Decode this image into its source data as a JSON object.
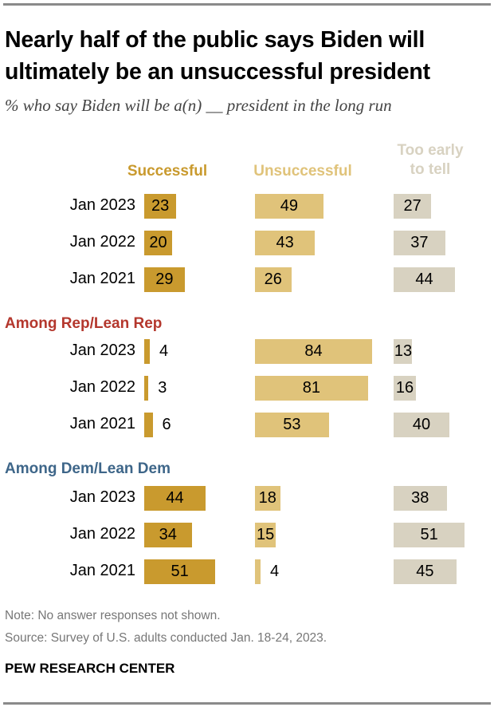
{
  "chart_data": {
    "type": "bar",
    "title": "Nearly half of the public says Biden will ultimately be an unsuccessful president",
    "subtitle": "% who say Biden will be a(n) __ president in the long run",
    "series_names": [
      "Successful",
      "Unsuccessful",
      "Too early to tell"
    ],
    "series_labels": [
      "Successful",
      "Unsuccessful",
      "Too early",
      "to tell"
    ],
    "colors": [
      "#c99a2e",
      "#e0c37a",
      "#d8d2c1"
    ],
    "groups": [
      {
        "label": "",
        "color": "#000000",
        "rows": [
          {
            "label": "Jan 2023",
            "values": [
              23,
              49,
              27
            ]
          },
          {
            "label": "Jan 2022",
            "values": [
              20,
              43,
              37
            ]
          },
          {
            "label": "Jan 2021",
            "values": [
              29,
              26,
              44
            ]
          }
        ]
      },
      {
        "label": "Among Rep/Lean Rep",
        "color": "#b4372d",
        "rows": [
          {
            "label": "Jan 2023",
            "values": [
              4,
              84,
              13
            ]
          },
          {
            "label": "Jan 2022",
            "values": [
              3,
              81,
              16
            ]
          },
          {
            "label": "Jan 2021",
            "values": [
              6,
              53,
              40
            ]
          }
        ]
      },
      {
        "label": "Among Dem/Lean Dem",
        "color": "#3e6689",
        "rows": [
          {
            "label": "Jan 2023",
            "values": [
              44,
              18,
              38
            ]
          },
          {
            "label": "Jan 2022",
            "values": [
              34,
              15,
              51
            ]
          },
          {
            "label": "Jan 2021",
            "values": [
              51,
              4,
              45
            ]
          }
        ]
      }
    ],
    "xlim": [
      0,
      100
    ]
  },
  "note": "Note: No answer responses not shown.",
  "source": "Source: Survey of U.S. adults conducted Jan. 18-24, 2023.",
  "brand": "PEW RESEARCH CENTER"
}
